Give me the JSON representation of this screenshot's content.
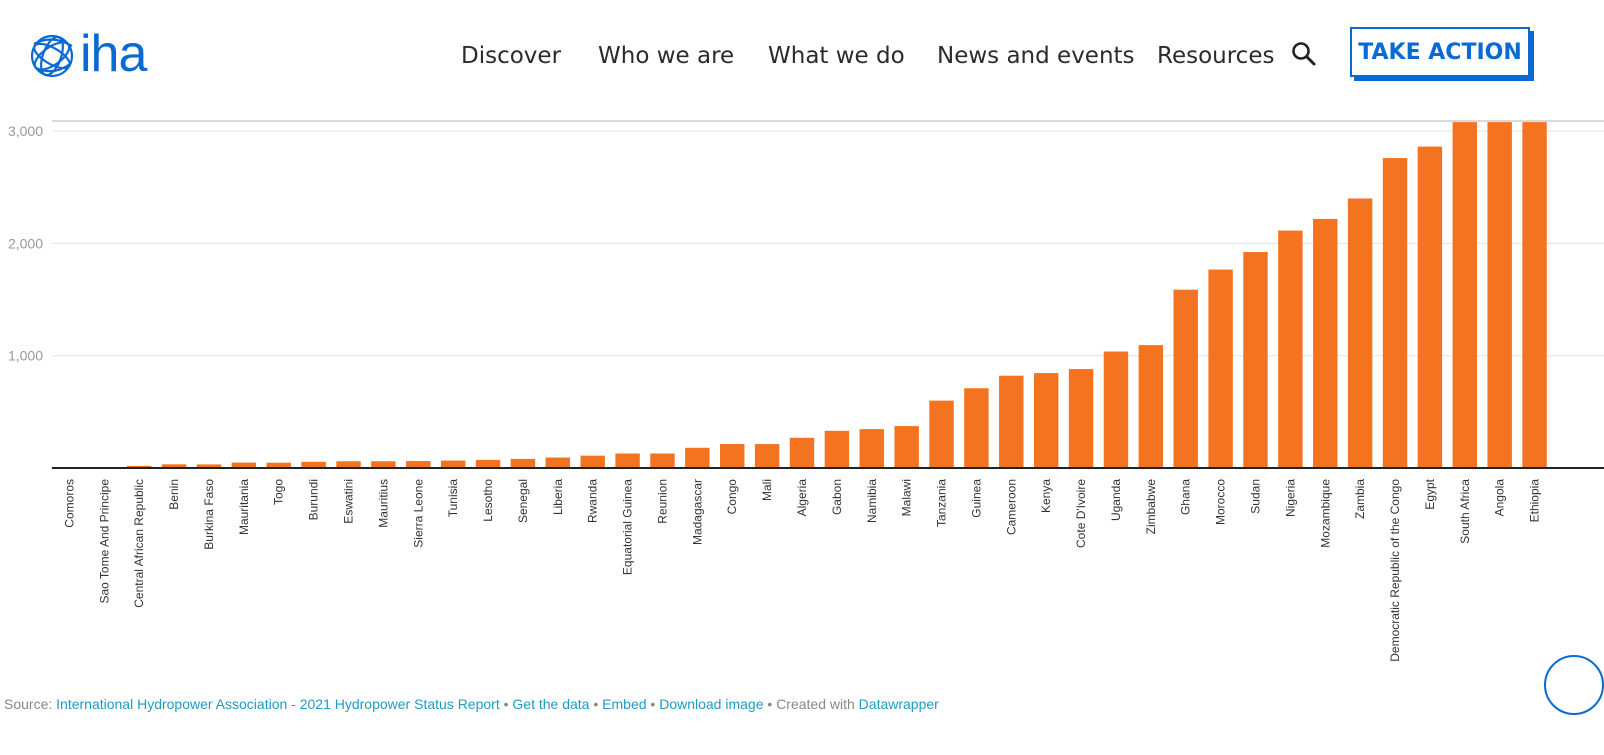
{
  "header": {
    "logo_text": "iha",
    "nav": [
      {
        "label": "Discover"
      },
      {
        "label": "Who we are"
      },
      {
        "label": "What we do"
      },
      {
        "label": "News and events"
      },
      {
        "label": "Resources"
      }
    ],
    "search_icon": "search-icon",
    "cta_label": "TAKE ACTION",
    "brand_color": "#0a6ad3"
  },
  "chart_data": {
    "type": "bar",
    "title": "",
    "xlabel": "",
    "ylabel": "",
    "ylim": [
      0,
      3080
    ],
    "yticks": [
      1000,
      2000,
      3000
    ],
    "ytick_labels": [
      "1,000",
      "2,000",
      "3,000"
    ],
    "grid": true,
    "bar_color": "#f37321",
    "categories": [
      "Comoros",
      "Sao Tome And Principe",
      "Central African Republic",
      "Benin",
      "Burkina Faso",
      "Mauritania",
      "Togo",
      "Burundi",
      "Eswatini",
      "Mauritius",
      "Sierra Leone",
      "Tunisia",
      "Lesotho",
      "Senegal",
      "Liberia",
      "Rwanda",
      "Equatorial Guinea",
      "Reunion",
      "Madagascar",
      "Congo",
      "Mali",
      "Algeria",
      "Gabon",
      "Namibia",
      "Malawi",
      "Tanzania",
      "Guinea",
      "Cameroon",
      "Kenya",
      "Cote D'Ivoire",
      "Uganda",
      "Zimbabwe",
      "Ghana",
      "Morocco",
      "Sudan",
      "Nigeria",
      "Mozambique",
      "Zambia",
      "Democratic Republic of the Congo",
      "Egypt",
      "South Africa",
      "Angola",
      "Ethiopia"
    ],
    "values": [
      1,
      2,
      19,
      33,
      32,
      48,
      47,
      55,
      60,
      60,
      62,
      66,
      72,
      81,
      93,
      110,
      129,
      129,
      180,
      214,
      213,
      269,
      331,
      346,
      373,
      600,
      710,
      822,
      845,
      881,
      1037,
      1094,
      1588,
      1767,
      1923,
      2114,
      2218,
      2400,
      2760,
      2862,
      3080,
      3080,
      3080
    ]
  },
  "footer": {
    "source_prefix": "Source:",
    "source_link": "International Hydropower Association - 2021 Hydropower Status Report",
    "sep": "•",
    "get_data": "Get the data",
    "embed": "Embed",
    "download": "Download image",
    "created_with": "Created with",
    "datawrapper": "Datawrapper"
  }
}
